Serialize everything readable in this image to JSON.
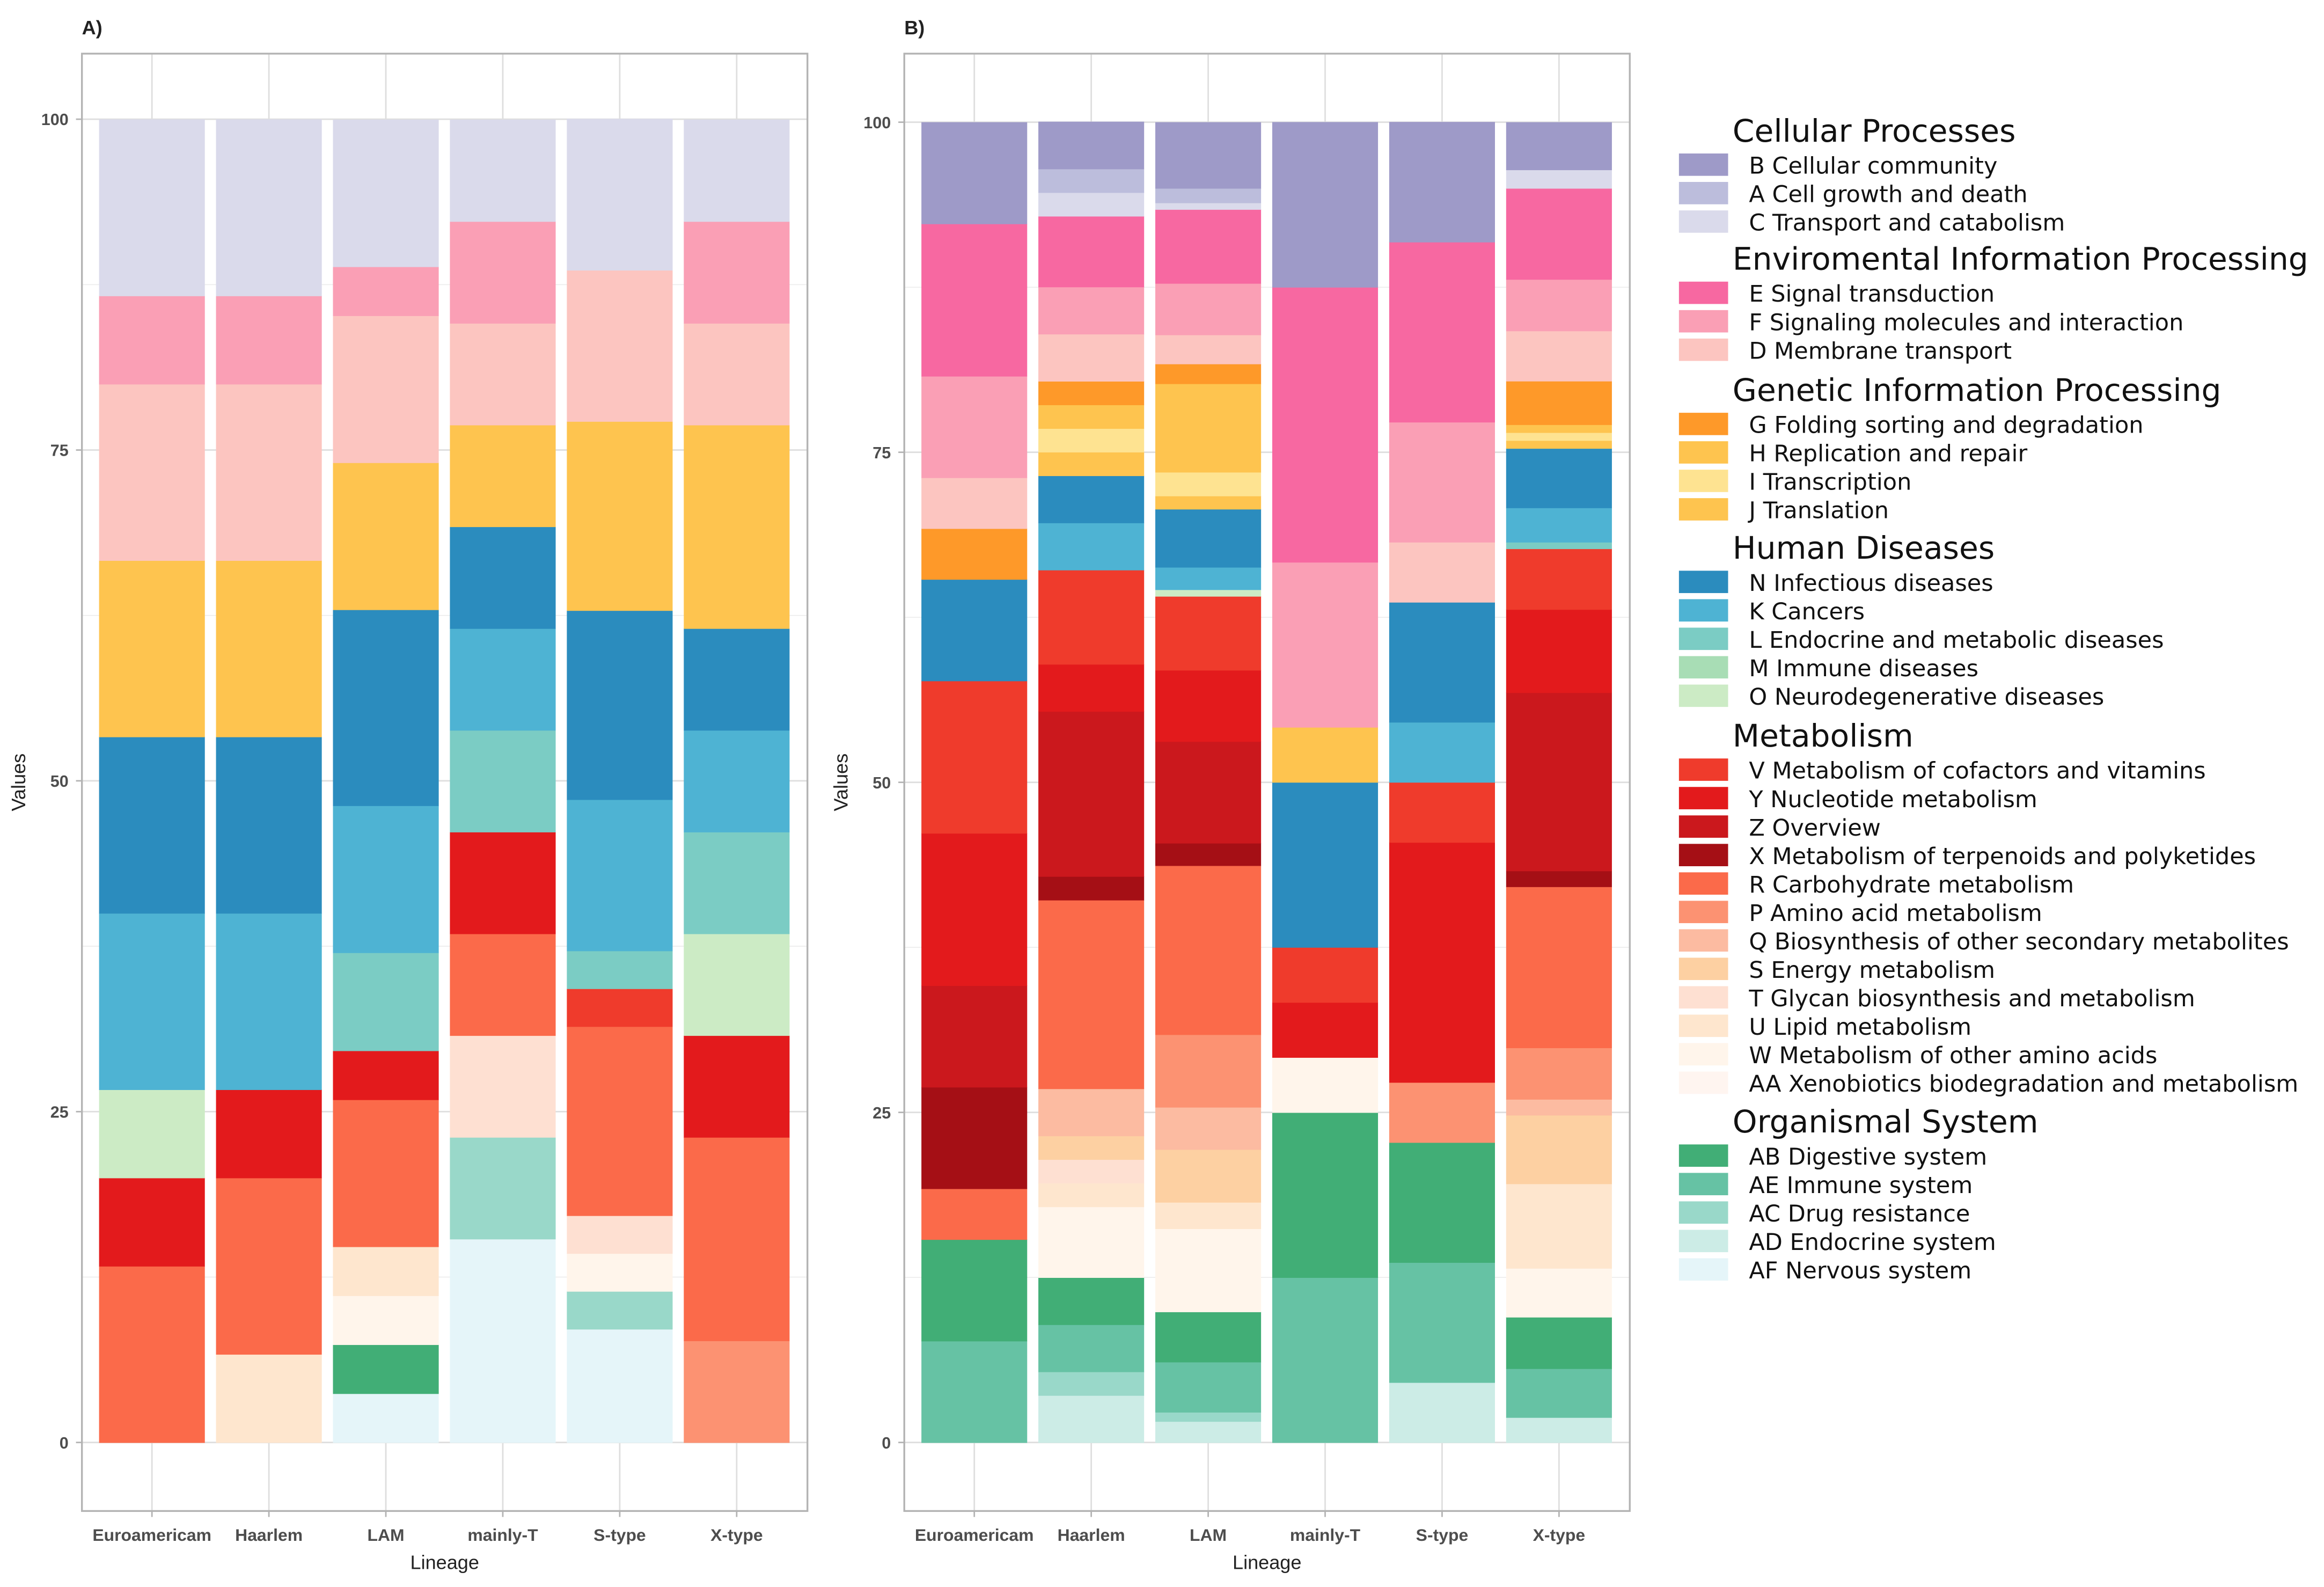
{
  "chart_data": [
    {
      "type": "bar",
      "stacked": true,
      "panel_label": "A)",
      "xlabel": "Lineage",
      "ylabel": "Values",
      "ylim": [
        0,
        100
      ],
      "yticks": [
        "0",
        "25",
        "50",
        "75",
        "100"
      ],
      "grid": true,
      "categories": [
        "Euroamericam",
        "Haarlem",
        "LAM",
        "mainly-T",
        "S-type",
        "X-type"
      ],
      "stacks": {
        "Euroamericam": {
          "R": 13.33,
          "Y": 6.67,
          "O": 6.67,
          "K": 13.33,
          "N": 13.33,
          "J": 13.33,
          "D": 13.33,
          "F": 6.67,
          "C": 13.33
        },
        "Haarlem": {
          "U": 6.67,
          "R": 13.33,
          "Y": 6.67,
          "K": 13.33,
          "N": 13.33,
          "J": 13.33,
          "D": 13.33,
          "F": 6.67,
          "C": 13.33
        },
        "LAM": {
          "AF": 3.7,
          "AB": 3.7,
          "W": 3.7,
          "U": 3.7,
          "R": 11.11,
          "Y": 3.7,
          "L": 7.41,
          "K": 11.11,
          "N": 14.81,
          "J": 11.11,
          "D": 11.11,
          "F": 3.7,
          "C": 11.11
        },
        "mainly-T": {
          "AF": 15.38,
          "AC": 7.69,
          "T": 7.69,
          "R": 7.69,
          "Y": 7.69,
          "L": 7.69,
          "K": 7.69,
          "N": 7.69,
          "J": 7.69,
          "D": 7.69,
          "F": 7.69,
          "C": 7.69
        },
        "S-type": {
          "AF": 8.57,
          "AC": 2.86,
          "W": 2.86,
          "T": 2.86,
          "R": 14.29,
          "V": 2.86,
          "L": 2.86,
          "K": 11.43,
          "N": 14.29,
          "J": 14.29,
          "D": 11.43,
          "C": 11.43
        },
        "X-type": {
          "P": 7.69,
          "R": 15.38,
          "Y": 7.69,
          "O": 7.69,
          "L": 7.69,
          "K": 7.69,
          "N": 7.69,
          "J": 15.38,
          "D": 7.69,
          "F": 7.69,
          "C": 7.69
        }
      }
    },
    {
      "type": "bar",
      "stacked": true,
      "panel_label": "B)",
      "xlabel": "Lineage",
      "ylabel": "Values",
      "ylim": [
        0,
        100
      ],
      "yticks": [
        "0",
        "25",
        "50",
        "75",
        "100"
      ],
      "grid": true,
      "categories": [
        "Euroamericam",
        "Haarlem",
        "LAM",
        "mainly-T",
        "S-type",
        "X-type"
      ],
      "stacks": {
        "Euroamericam": {
          "AE": 7.69,
          "AB": 7.69,
          "R": 3.85,
          "X": 7.69,
          "Z": 7.69,
          "Y": 11.54,
          "V": 11.54,
          "N": 7.69,
          "G": 3.85,
          "D": 3.85,
          "F": 7.69,
          "E": 11.54,
          "B": 7.69
        },
        "Haarlem": {
          "AD": 3.57,
          "AC": 1.79,
          "AE": 3.57,
          "AB": 3.57,
          "W": 5.36,
          "U": 1.79,
          "T": 1.79,
          "S": 1.79,
          "Q": 3.57,
          "R": 14.29,
          "X": 1.79,
          "Z": 12.5,
          "Y": 3.57,
          "V": 7.14,
          "K": 3.57,
          "N": 3.57,
          "J": 1.79,
          "I": 1.79,
          "H": 1.79,
          "G": 1.79,
          "D": 3.57,
          "F": 3.57,
          "E": 5.36,
          "C": 1.79,
          "A": 1.79,
          "B": 3.57
        },
        "LAM": {
          "AD": 1.6,
          "AC": 0.7,
          "AE": 3.8,
          "AB": 3.8,
          "W": 6.3,
          "U": 2.0,
          "S": 4.0,
          "Q": 3.2,
          "P": 5.5,
          "R": 12.8,
          "X": 1.7,
          "Z": 7.7,
          "Y": 5.4,
          "V": 5.6,
          "O": 0.5,
          "K": 1.7,
          "N": 4.4,
          "J": 1.0,
          "I": 1.8,
          "H": 6.7,
          "G": 1.5,
          "D": 2.2,
          "F": 3.9,
          "E": 5.6,
          "C": 0.5,
          "A": 1.1,
          "B": 5.0
        },
        "mainly-T": {
          "AE": 12.5,
          "AB": 12.5,
          "W": 4.17,
          "Y": 4.17,
          "V": 4.17,
          "N": 12.5,
          "H": 4.17,
          "F": 12.5,
          "E": 20.83,
          "B": 12.5
        },
        "S-type": {
          "AD": 4.55,
          "AE": 9.09,
          "AB": 9.09,
          "P": 4.55,
          "Y": 18.18,
          "V": 4.55,
          "K": 4.55,
          "N": 9.09,
          "D": 4.55,
          "F": 9.09,
          "E": 13.64,
          "B": 9.09
        },
        "X-type": {
          "AD": 1.9,
          "AE": 3.7,
          "AB": 3.9,
          "W": 3.7,
          "U": 6.4,
          "S": 5.2,
          "Q": 1.2,
          "P": 3.9,
          "R": 12.2,
          "X": 1.2,
          "Z": 13.5,
          "Y": 6.3,
          "V": 4.6,
          "L": 0.5,
          "K": 2.6,
          "N": 4.5,
          "J": 0.6,
          "I": 0.6,
          "H": 0.6,
          "G": 3.3,
          "D": 3.8,
          "F": 3.9,
          "E": 6.9,
          "C": 1.4,
          "B": 3.6
        }
      }
    }
  ],
  "legend": {
    "placement": "right",
    "groups": [
      {
        "title": "Cellular Processes",
        "items": [
          {
            "key": "B",
            "label": "B Cellular community",
            "color": "#9e9ac8"
          },
          {
            "key": "A",
            "label": "A Cell growth and death",
            "color": "#bcbddc"
          },
          {
            "key": "C",
            "label": "C Transport and catabolism",
            "color": "#dadaeb"
          }
        ]
      },
      {
        "title": "Enviromental Information Processing",
        "items": [
          {
            "key": "E",
            "label": "E Signal transduction",
            "color": "#f768a1"
          },
          {
            "key": "F",
            "label": "F Signaling molecules and interaction",
            "color": "#fa9fb5"
          },
          {
            "key": "D",
            "label": "D Membrane transport",
            "color": "#fcc5c0"
          }
        ]
      },
      {
        "title": "Genetic Information Processing",
        "items": [
          {
            "key": "G",
            "label": "G Folding sorting and degradation",
            "color": "#fe9929"
          },
          {
            "key": "H",
            "label": "H Replication and repair",
            "color": "#fec44f"
          },
          {
            "key": "I",
            "label": "I Transcription",
            "color": "#fee391"
          },
          {
            "key": "J",
            "label": "J Translation",
            "color": "#fec44f"
          }
        ]
      },
      {
        "title": "Human Diseases",
        "items": [
          {
            "key": "N",
            "label": "N Infectious diseases",
            "color": "#2b8cbe"
          },
          {
            "key": "K",
            "label": "K Cancers",
            "color": "#4eb3d3"
          },
          {
            "key": "L",
            "label": "L Endocrine and metabolic diseases",
            "color": "#7bccc4"
          },
          {
            "key": "M",
            "label": "M Immune diseases",
            "color": "#a8ddb5"
          },
          {
            "key": "O",
            "label": "O Neurodegenerative diseases",
            "color": "#ccebc5"
          }
        ]
      },
      {
        "title": "Metabolism",
        "items": [
          {
            "key": "V",
            "label": "V Metabolism of cofactors and vitamins",
            "color": "#ef3b2c"
          },
          {
            "key": "Y",
            "label": "Y Nucleotide metabolism",
            "color": "#e31a1c"
          },
          {
            "key": "Z",
            "label": "Z Overview",
            "color": "#cb181d"
          },
          {
            "key": "X",
            "label": "X Metabolism of terpenoids and polyketides",
            "color": "#a50f15"
          },
          {
            "key": "R",
            "label": "R Carbohydrate metabolism",
            "color": "#fb6a4a"
          },
          {
            "key": "P",
            "label": "P Amino acid metabolism",
            "color": "#fc9272"
          },
          {
            "key": "Q",
            "label": "Q Biosynthesis of other secondary metabolites",
            "color": "#fcbba1"
          },
          {
            "key": "S",
            "label": "S Energy metabolism",
            "color": "#fdd0a2"
          },
          {
            "key": "T",
            "label": "T Glycan biosynthesis and metabolism",
            "color": "#fee0d2"
          },
          {
            "key": "U",
            "label": "U Lipid metabolism",
            "color": "#fee6ce"
          },
          {
            "key": "W",
            "label": "W Metabolism of other amino acids",
            "color": "#fff5eb"
          },
          {
            "key": "AA",
            "label": "AA Xenobiotics biodegradation and metabolism",
            "color": "#fff5f0"
          }
        ]
      },
      {
        "title": "Organismal System",
        "items": [
          {
            "key": "AB",
            "label": "AB Digestive system",
            "color": "#41ae76"
          },
          {
            "key": "AE",
            "label": "AE Immune system",
            "color": "#66c2a4"
          },
          {
            "key": "AC",
            "label": "AC Drug resistance",
            "color": "#99d8c9"
          },
          {
            "key": "AD",
            "label": "AD Endocrine system",
            "color": "#ccece6"
          },
          {
            "key": "AF",
            "label": "AF Nervous system",
            "color": "#e5f5f9"
          }
        ]
      }
    ]
  }
}
